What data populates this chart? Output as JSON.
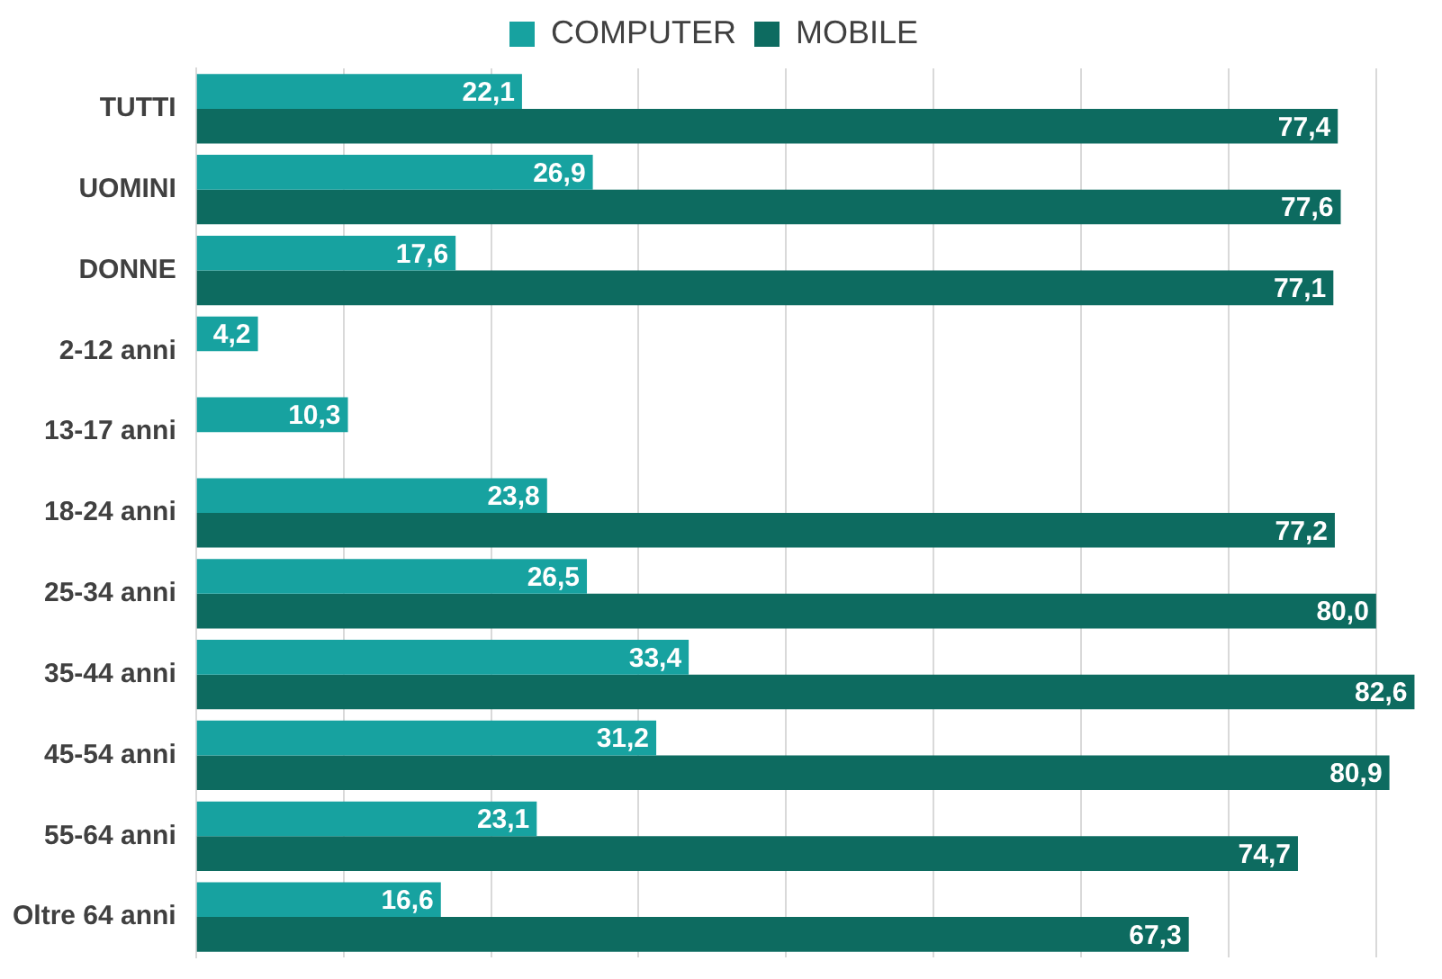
{
  "chart_data": {
    "type": "bar",
    "orientation": "horizontal",
    "categories": [
      "TUTTI",
      "UOMINI",
      "DONNE",
      "2-12 anni",
      "13-17 anni",
      "18-24 anni",
      "25-34 anni",
      "35-44 anni",
      "45-54 anni",
      "55-64 anni",
      "Oltre 64 anni"
    ],
    "series": [
      {
        "name": "COMPUTER",
        "color": "#17a2a0",
        "values": [
          22.1,
          26.9,
          17.6,
          4.2,
          10.3,
          23.8,
          26.5,
          33.4,
          31.2,
          23.1,
          16.6
        ],
        "value_labels": [
          "22,1",
          "26,9",
          "17,6",
          "4,2",
          "10,3",
          "23,8",
          "26,5",
          "33,4",
          "31,2",
          "23,1",
          "16,6"
        ]
      },
      {
        "name": "MOBILE",
        "color": "#0d6b60",
        "values": [
          77.4,
          77.6,
          77.1,
          null,
          null,
          77.2,
          80.0,
          82.6,
          80.9,
          74.7,
          67.3
        ],
        "value_labels": [
          "77,4",
          "77,6",
          "77,1",
          null,
          null,
          "77,2",
          "80,0",
          "82,6",
          "80,9",
          "74,7",
          "67,3"
        ]
      }
    ],
    "xlim": [
      0,
      83
    ],
    "xticks": [
      {
        "value": 0,
        "label": null
      },
      {
        "value": 10,
        "label": null
      },
      {
        "value": 20,
        "label": null
      },
      {
        "value": 30,
        "label": null
      },
      {
        "value": 40,
        "label": null
      },
      {
        "value": 50,
        "label": null
      },
      {
        "value": 60,
        "label": null
      },
      {
        "value": 70,
        "label": null
      },
      {
        "value": 80,
        "label": null
      }
    ],
    "tick_labels": "y",
    "grid": "x",
    "legend": "top"
  }
}
